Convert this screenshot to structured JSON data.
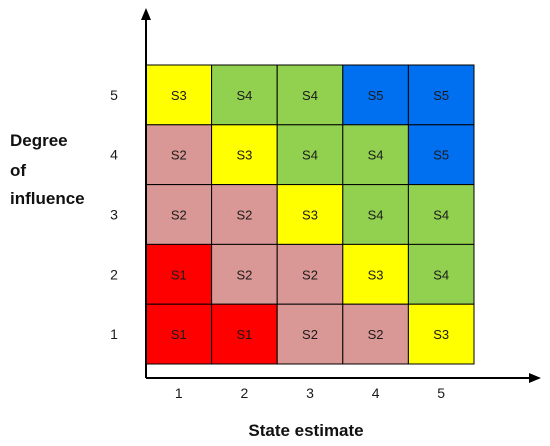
{
  "chart_data": {
    "type": "heatmap",
    "xlabel": "State estimate",
    "ylabel_lines": [
      "Degree",
      "of",
      "influence"
    ],
    "x_ticks": [
      "1",
      "2",
      "3",
      "4",
      "5"
    ],
    "y_ticks": [
      "1",
      "2",
      "3",
      "4",
      "5"
    ],
    "grid": [
      {
        "y": 5,
        "cells": [
          "S3",
          "S4",
          "S4",
          "S5",
          "S5"
        ]
      },
      {
        "y": 4,
        "cells": [
          "S2",
          "S3",
          "S4",
          "S4",
          "S5"
        ]
      },
      {
        "y": 3,
        "cells": [
          "S2",
          "S2",
          "S3",
          "S4",
          "S4"
        ]
      },
      {
        "y": 2,
        "cells": [
          "S1",
          "S2",
          "S2",
          "S3",
          "S4"
        ]
      },
      {
        "y": 1,
        "cells": [
          "S1",
          "S1",
          "S2",
          "S2",
          "S3"
        ]
      }
    ],
    "category_colors": {
      "S1": "#ff0000",
      "S2": "#d99795",
      "S3": "#ffff00",
      "S4": "#92d050",
      "S5": "#0070f0"
    },
    "axis_color": "#000000",
    "cell_border_color": "#000000"
  }
}
